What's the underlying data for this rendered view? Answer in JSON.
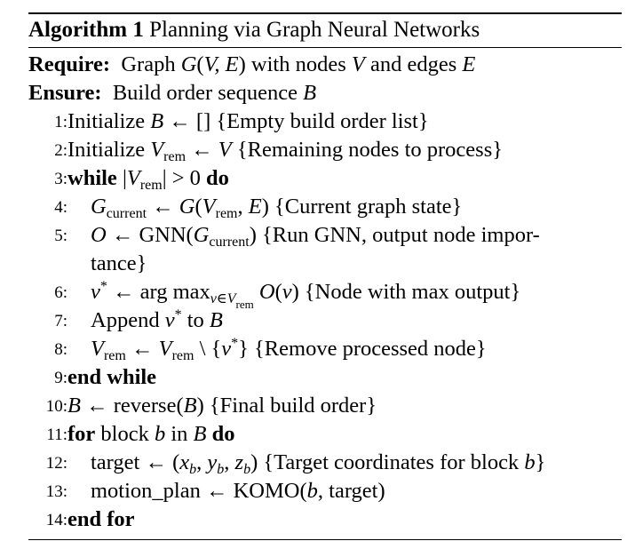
{
  "caption": {
    "label": "Algorithm 1",
    "title": "Planning via Graph Neural Networks"
  },
  "require": {
    "keyword": "Require:",
    "text_pre": "Graph",
    "text_mid": "with nodes",
    "text_mid2": "and edges"
  },
  "ensure": {
    "keyword": "Ensure:",
    "text": "Build order sequence"
  },
  "lines": [
    {
      "num": "1:",
      "pre": "Initialize",
      "comment": "{Empty build order list}"
    },
    {
      "num": "2:",
      "pre": "Initialize",
      "comment": "{Remaining nodes to process}"
    },
    {
      "num": "3:",
      "kw1": "while",
      "kw2": "do"
    },
    {
      "num": "4:",
      "comment": "{Current graph state}"
    },
    {
      "num": "5:",
      "fn": "GNN",
      "comment": "{Run GNN, output node impor-",
      "comment_cont": "tance}"
    },
    {
      "num": "6:",
      "fn": "arg max",
      "comment": "{Node with max output}"
    },
    {
      "num": "7:",
      "pre": "Append",
      "mid": "to"
    },
    {
      "num": "8:",
      "comment": "{Remove processed node}"
    },
    {
      "num": "9:",
      "kw1": "end while"
    },
    {
      "num": "10:",
      "fn": "reverse",
      "comment": "{Final build order}"
    },
    {
      "num": "11:",
      "kw1": "for",
      "pre": "block",
      "mid": "in",
      "kw2": "do"
    },
    {
      "num": "12:",
      "pre": "target",
      "comment": "{Target coordinates for block",
      "comment_end": "}"
    },
    {
      "num": "13:",
      "pre": "motion_plan",
      "fn": "KOMO",
      "arg": "target"
    },
    {
      "num": "14:",
      "kw1": "end for"
    }
  ]
}
